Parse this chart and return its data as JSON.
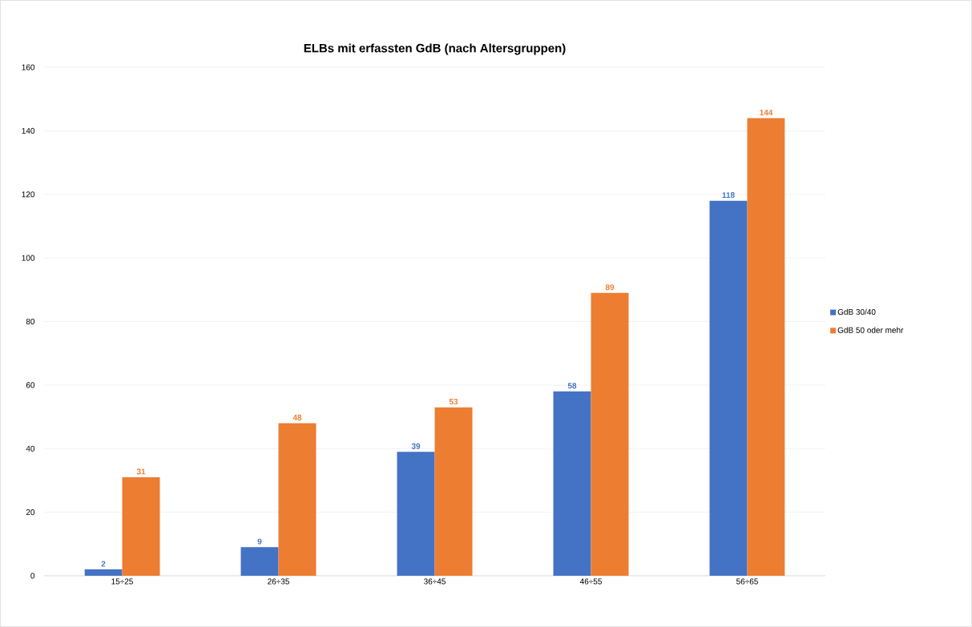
{
  "chart_data": {
    "type": "bar",
    "title": "ELBs mit erfassten GdB (nach Altersgruppen)",
    "categories": [
      "15÷25",
      "26÷35",
      "36÷45",
      "46÷55",
      "56÷65"
    ],
    "series": [
      {
        "name": "GdB 30/40",
        "color": "#4472c4",
        "values": [
          2,
          9,
          39,
          58,
          118
        ]
      },
      {
        "name": "GdB 50 oder mehr",
        "color": "#ed7d31",
        "values": [
          31,
          48,
          53,
          89,
          144
        ]
      }
    ],
    "ylim": [
      0,
      160
    ],
    "yticks": [
      0,
      20,
      40,
      60,
      80,
      100,
      120,
      140,
      160
    ],
    "grid": "y",
    "legend": "right",
    "data_labels": true
  }
}
